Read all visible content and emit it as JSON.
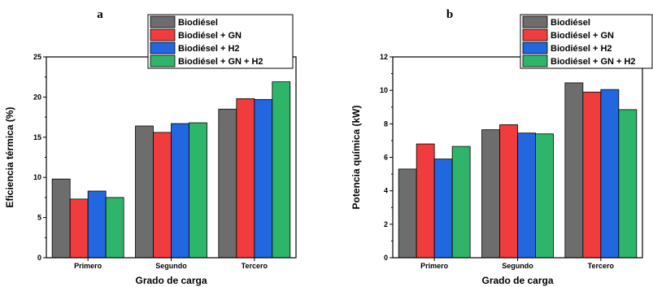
{
  "series_colors": [
    "#6d6d6d",
    "#f03c3c",
    "#2266e0",
    "#2eb56a"
  ],
  "chart_data": [
    {
      "type": "bar",
      "panel_label": "a",
      "categories": [
        "Primero",
        "Segundo",
        "Tercero"
      ],
      "series": [
        {
          "name": "Biodiésel",
          "values": [
            9.8,
            16.4,
            18.5
          ]
        },
        {
          "name": "Biodiésel + GN",
          "values": [
            7.3,
            15.6,
            19.8
          ]
        },
        {
          "name": "Biodiésel + H2",
          "values": [
            8.3,
            16.7,
            19.7
          ]
        },
        {
          "name": "Biodiésel + GN + H2",
          "values": [
            7.5,
            16.8,
            21.9
          ]
        }
      ],
      "xlabel": "Grado de carga",
      "ylabel": "Eficiencia térmica (%)",
      "ylim": [
        0,
        25
      ],
      "yticks": [
        0,
        5,
        10,
        15,
        20,
        25
      ],
      "grid": false,
      "legend_position": "top-right"
    },
    {
      "type": "bar",
      "panel_label": "b",
      "categories": [
        "Primero",
        "Segundo",
        "Tercero"
      ],
      "series": [
        {
          "name": "Biodiésel",
          "values": [
            5.3,
            7.65,
            10.45
          ]
        },
        {
          "name": "Biodiésel + GN",
          "values": [
            6.8,
            7.95,
            9.9
          ]
        },
        {
          "name": "Biodiésel + H2",
          "values": [
            5.9,
            7.45,
            10.05
          ]
        },
        {
          "name": "Biodiésel + GN + H2",
          "values": [
            6.65,
            7.4,
            8.85
          ]
        }
      ],
      "xlabel": "Grado de carga",
      "ylabel": "Potencia química (kW)",
      "ylim": [
        0,
        12
      ],
      "yticks": [
        0,
        2,
        4,
        6,
        8,
        10,
        12
      ],
      "grid": false,
      "legend_position": "top-right"
    }
  ]
}
